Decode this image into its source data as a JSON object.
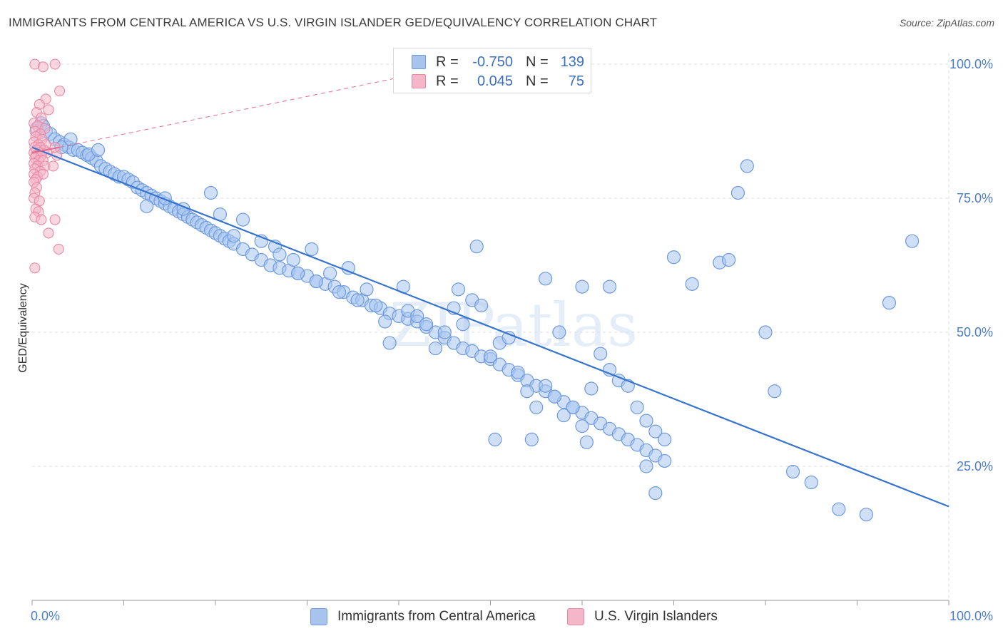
{
  "header": {
    "title": "IMMIGRANTS FROM CENTRAL AMERICA VS U.S. VIRGIN ISLANDER GED/EQUIVALENCY CORRELATION CHART",
    "source": "Source: ZipAtlas.com"
  },
  "watermark": "ZIPatlas",
  "legend_top": {
    "rows": [
      {
        "r_label": "R =",
        "r_value": "-0.750",
        "n_label": "N =",
        "n_value": "139",
        "color": "#a8c4ee"
      },
      {
        "r_label": "R =",
        "r_value": "0.045",
        "n_label": "N =",
        "n_value": "75",
        "color": "#f4b6c8"
      }
    ]
  },
  "colors": {
    "blue_fill": "#a8c4ee",
    "blue_stroke": "#6d9ae0",
    "blue_line": "#3674d0",
    "pink_fill": "#f4b6c8",
    "pink_stroke": "#e88aa6",
    "pink_line": "#e56a90",
    "grid": "#dcdcdc",
    "tick_text": "#4a7cc7"
  },
  "chart_data": {
    "type": "scatter",
    "title": "IMMIGRANTS FROM CENTRAL AMERICA VS U.S. VIRGIN ISLANDER GED/EQUIVALENCY CORRELATION CHART",
    "xlabel": "",
    "ylabel": "GED/Equivalency",
    "xlim": [
      0,
      100
    ],
    "ylim": [
      0,
      102
    ],
    "x_tick_labels": [
      "0.0%",
      "100.0%"
    ],
    "y_tick_labels": [
      "100.0%",
      "75.0%",
      "50.0%",
      "25.0%"
    ],
    "y_tick_values": [
      100,
      75,
      50,
      25
    ],
    "grid": true,
    "legend_position": "bottom",
    "series": [
      {
        "name": "Immigrants from Central America",
        "r": -0.75,
        "n": 139,
        "trend": {
          "x": [
            0,
            100
          ],
          "y": [
            84.5,
            17.5
          ]
        },
        "points": [
          [
            0.5,
            88
          ],
          [
            1,
            89
          ],
          [
            1.2,
            88.5
          ],
          [
            1.5,
            87.5
          ],
          [
            2,
            87
          ],
          [
            2.5,
            86
          ],
          [
            3,
            85.5
          ],
          [
            3.5,
            85
          ],
          [
            4,
            84.5
          ],
          [
            4.5,
            84
          ],
          [
            5,
            84
          ],
          [
            5.5,
            83.5
          ],
          [
            6,
            83
          ],
          [
            6.5,
            82.5
          ],
          [
            7,
            82
          ],
          [
            7.5,
            81
          ],
          [
            8,
            80.5
          ],
          [
            8.5,
            80
          ],
          [
            9,
            79.5
          ],
          [
            9.5,
            79
          ],
          [
            10,
            79
          ],
          [
            10.5,
            78.5
          ],
          [
            11,
            78
          ],
          [
            11.5,
            77
          ],
          [
            12,
            76.5
          ],
          [
            12.5,
            76
          ],
          [
            13,
            75.5
          ],
          [
            13.5,
            75
          ],
          [
            14,
            74.5
          ],
          [
            14.5,
            74
          ],
          [
            15,
            73.5
          ],
          [
            15.5,
            73
          ],
          [
            16,
            72.5
          ],
          [
            16.5,
            72
          ],
          [
            17,
            71.5
          ],
          [
            17.5,
            71
          ],
          [
            18,
            70.5
          ],
          [
            18.5,
            70
          ],
          [
            19,
            69.5
          ],
          [
            19.5,
            69
          ],
          [
            20,
            68.5
          ],
          [
            20.5,
            68
          ],
          [
            21,
            67.5
          ],
          [
            21.5,
            67
          ],
          [
            22,
            66.5
          ],
          [
            23,
            65.5
          ],
          [
            24,
            64.5
          ],
          [
            25,
            63.5
          ],
          [
            26,
            62.5
          ],
          [
            27,
            62
          ],
          [
            28,
            61.5
          ],
          [
            29,
            61
          ],
          [
            30,
            60.5
          ],
          [
            31,
            59.5
          ],
          [
            32,
            59
          ],
          [
            33,
            58.5
          ],
          [
            34,
            57.5
          ],
          [
            35,
            56.5
          ],
          [
            36,
            56
          ],
          [
            37,
            55
          ],
          [
            38,
            54.5
          ],
          [
            39,
            53.5
          ],
          [
            40,
            53
          ],
          [
            41,
            52.5
          ],
          [
            42,
            52
          ],
          [
            43,
            51
          ],
          [
            44,
            50
          ],
          [
            45,
            49
          ],
          [
            46,
            48
          ],
          [
            47,
            47
          ],
          [
            48,
            46.5
          ],
          [
            49,
            45.5
          ],
          [
            50,
            45
          ],
          [
            51,
            44
          ],
          [
            52,
            43
          ],
          [
            53,
            42
          ],
          [
            54,
            41
          ],
          [
            55,
            40
          ],
          [
            56,
            39
          ],
          [
            57,
            38
          ],
          [
            58,
            37
          ],
          [
            59,
            36
          ],
          [
            60,
            35
          ],
          [
            61,
            34
          ],
          [
            62,
            33
          ],
          [
            63,
            32
          ],
          [
            64,
            31
          ],
          [
            65,
            30
          ],
          [
            66,
            29
          ],
          [
            67,
            28
          ],
          [
            68,
            27
          ],
          [
            69,
            26
          ],
          [
            3.2,
            84.5
          ],
          [
            4.2,
            86
          ],
          [
            6.2,
            83.2
          ],
          [
            7.2,
            84
          ],
          [
            12.5,
            73.5
          ],
          [
            14.5,
            75
          ],
          [
            16.5,
            73
          ],
          [
            19.5,
            76
          ],
          [
            20.5,
            72
          ],
          [
            22,
            68
          ],
          [
            23,
            71
          ],
          [
            25,
            67
          ],
          [
            26.5,
            66
          ],
          [
            27,
            64.5
          ],
          [
            28.5,
            63.5
          ],
          [
            29,
            61
          ],
          [
            30.5,
            65.5
          ],
          [
            31,
            59.5
          ],
          [
            32.5,
            61
          ],
          [
            33.5,
            57.5
          ],
          [
            34.5,
            62
          ],
          [
            35.5,
            56
          ],
          [
            36.5,
            58
          ],
          [
            37.5,
            55
          ],
          [
            38.5,
            52
          ],
          [
            39,
            48
          ],
          [
            40.5,
            58.5
          ],
          [
            41,
            54
          ],
          [
            42,
            53
          ],
          [
            43,
            51.5
          ],
          [
            44,
            47
          ],
          [
            45,
            50
          ],
          [
            46,
            54.5
          ],
          [
            46.5,
            58
          ],
          [
            47,
            51.5
          ],
          [
            48,
            56
          ],
          [
            49,
            55
          ],
          [
            50,
            45.5
          ],
          [
            51,
            48
          ],
          [
            52,
            49
          ],
          [
            53,
            42.5
          ],
          [
            54,
            39
          ],
          [
            55,
            36
          ],
          [
            56,
            40
          ],
          [
            57,
            38
          ],
          [
            58,
            34.5
          ],
          [
            59,
            36
          ],
          [
            60,
            32.5
          ],
          [
            61,
            39.5
          ],
          [
            62,
            46
          ],
          [
            63,
            43
          ],
          [
            64,
            41
          ],
          [
            65,
            40
          ],
          [
            66,
            36
          ],
          [
            67,
            33.5
          ],
          [
            68,
            31.5
          ],
          [
            69,
            30
          ],
          [
            48.5,
            66
          ],
          [
            50.5,
            30
          ],
          [
            54.5,
            30
          ],
          [
            60.5,
            29.5
          ],
          [
            56,
            60
          ],
          [
            57.5,
            50
          ],
          [
            60,
            58.5
          ],
          [
            63,
            58.5
          ],
          [
            68,
            20
          ],
          [
            67,
            25
          ],
          [
            70,
            64
          ],
          [
            72,
            59
          ],
          [
            75,
            63
          ],
          [
            76,
            63.5
          ],
          [
            77,
            76
          ],
          [
            78,
            81
          ],
          [
            80,
            50
          ],
          [
            81,
            39
          ],
          [
            83,
            24
          ],
          [
            85,
            22
          ],
          [
            88,
            17
          ],
          [
            91,
            16
          ],
          [
            93.5,
            55.5
          ],
          [
            96,
            67
          ]
        ]
      },
      {
        "name": "U.S. Virgin Islanders",
        "r": 0.045,
        "n": 75,
        "trend": {
          "x": [
            0,
            3
          ],
          "y": [
            83.5,
            84.5
          ]
        },
        "trend_dashed": {
          "x": [
            3,
            40
          ],
          "y": [
            84.5,
            97.5
          ]
        },
        "points": [
          [
            0.3,
            100
          ],
          [
            1.2,
            99.5
          ],
          [
            2.5,
            100
          ],
          [
            3,
            95
          ],
          [
            1.5,
            93.5
          ],
          [
            0.8,
            92.5
          ],
          [
            1.8,
            91.5
          ],
          [
            0.5,
            91
          ],
          [
            1,
            90
          ],
          [
            0.2,
            89
          ],
          [
            0.6,
            88.5
          ],
          [
            1.4,
            88
          ],
          [
            0.3,
            87.5
          ],
          [
            0.9,
            87
          ],
          [
            0.4,
            86.5
          ],
          [
            1.1,
            86
          ],
          [
            0.2,
            85.5
          ],
          [
            0.7,
            85
          ],
          [
            1.5,
            85
          ],
          [
            0.3,
            84.5
          ],
          [
            0.9,
            84.5
          ],
          [
            0.5,
            84
          ],
          [
            1.3,
            84
          ],
          [
            0.2,
            83.5
          ],
          [
            0.8,
            83.5
          ],
          [
            1.6,
            83.5
          ],
          [
            0.4,
            83
          ],
          [
            1.0,
            83
          ],
          [
            0.3,
            82.5
          ],
          [
            0.7,
            82
          ],
          [
            1.2,
            82
          ],
          [
            0.2,
            81.5
          ],
          [
            0.6,
            81
          ],
          [
            1.4,
            81
          ],
          [
            0.3,
            80.5
          ],
          [
            0.9,
            80
          ],
          [
            0.2,
            79.5
          ],
          [
            0.6,
            79
          ],
          [
            1.2,
            79.5
          ],
          [
            0.4,
            78.5
          ],
          [
            0.2,
            78
          ],
          [
            0.5,
            77
          ],
          [
            0.3,
            76
          ],
          [
            0.2,
            75
          ],
          [
            0.8,
            74.5
          ],
          [
            0.4,
            73
          ],
          [
            0.7,
            72.5
          ],
          [
            0.3,
            71.5
          ],
          [
            1.0,
            71
          ],
          [
            2.5,
            71
          ],
          [
            2.3,
            81
          ],
          [
            2.7,
            83
          ],
          [
            2.5,
            84.5
          ],
          [
            1.8,
            68.5
          ],
          [
            2.9,
            65.5
          ],
          [
            0.3,
            62
          ]
        ]
      }
    ]
  },
  "legend_bottom": {
    "items": [
      {
        "label": "Immigrants from Central America",
        "color": "#a8c4ee"
      },
      {
        "label": "U.S. Virgin Islanders",
        "color": "#f4b6c8"
      }
    ]
  }
}
